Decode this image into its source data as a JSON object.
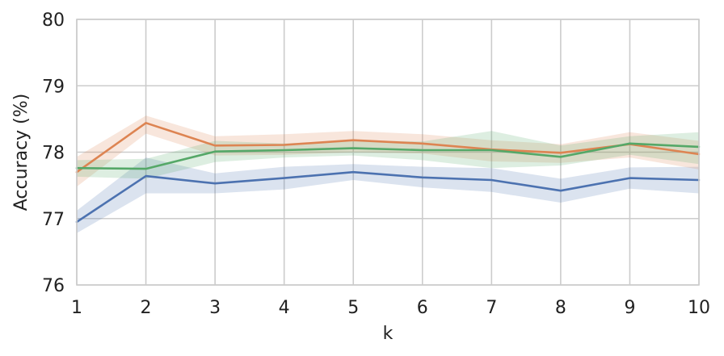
{
  "chart_data": {
    "type": "line",
    "xlabel": "k",
    "ylabel": "Accuracy (%)",
    "x": [
      1,
      2,
      3,
      4,
      5,
      6,
      7,
      8,
      9,
      10
    ],
    "xlim": [
      1,
      10
    ],
    "ylim": [
      76,
      80
    ],
    "xticks": [
      "1",
      "2",
      "3",
      "4",
      "5",
      "6",
      "7",
      "8",
      "9",
      "10"
    ],
    "yticks": [
      "76",
      "77",
      "78",
      "79",
      "80"
    ],
    "grid": true,
    "series": [
      {
        "color": "#4c72b0",
        "values": [
          76.95,
          77.64,
          77.53,
          77.61,
          77.7,
          77.62,
          77.58,
          77.42,
          77.61,
          77.58
        ],
        "lower": [
          76.78,
          77.38,
          77.38,
          77.44,
          77.58,
          77.47,
          77.4,
          77.24,
          77.45,
          77.38
        ],
        "upper": [
          77.12,
          77.92,
          77.68,
          77.78,
          77.82,
          77.78,
          77.76,
          77.6,
          77.77,
          77.78
        ]
      },
      {
        "color": "#dd8452",
        "values": [
          77.7,
          78.44,
          78.1,
          78.11,
          78.18,
          78.13,
          78.04,
          77.99,
          78.12,
          77.97
        ],
        "lower": [
          77.48,
          78.28,
          77.95,
          77.96,
          78.0,
          77.98,
          77.86,
          77.84,
          77.92,
          77.74
        ],
        "upper": [
          77.93,
          78.55,
          78.24,
          78.27,
          78.32,
          78.27,
          78.18,
          78.12,
          78.3,
          78.17
        ]
      },
      {
        "color": "#55a868",
        "values": [
          77.76,
          77.75,
          78.01,
          78.03,
          78.06,
          78.03,
          78.03,
          77.93,
          78.13,
          78.08
        ],
        "lower": [
          77.63,
          77.6,
          77.85,
          77.92,
          77.95,
          77.88,
          77.76,
          77.8,
          77.96,
          77.82
        ],
        "upper": [
          77.88,
          77.9,
          78.17,
          78.13,
          78.18,
          78.16,
          78.32,
          78.1,
          78.24,
          78.3
        ]
      }
    ]
  }
}
